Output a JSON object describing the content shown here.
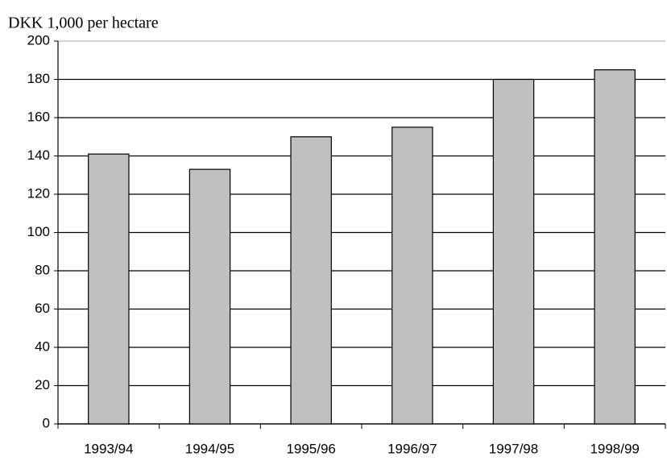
{
  "chart_data": {
    "type": "bar",
    "ylabel": "DKK 1,000 per hectare",
    "categories": [
      "1993/94",
      "1994/95",
      "1995/96",
      "1996/97",
      "1997/98",
      "1998/99"
    ],
    "values": [
      141,
      133,
      150,
      155,
      180,
      185
    ],
    "color": "#c0c0c0",
    "ylim": [
      0,
      200
    ],
    "yticks": [
      0,
      20,
      40,
      60,
      80,
      100,
      120,
      140,
      160,
      180,
      200
    ],
    "grid": true
  }
}
